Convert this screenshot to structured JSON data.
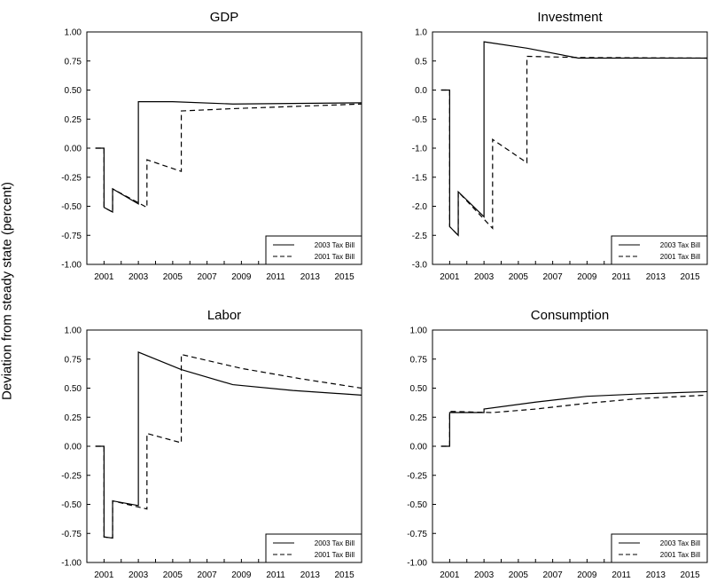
{
  "ylabel": "Deviation from steady state (percent)",
  "chart_data": [
    {
      "type": "line",
      "title": "GDP",
      "xlim": [
        2000,
        2016
      ],
      "ylim": [
        -1.0,
        1.0
      ],
      "yticks": [
        "1.00",
        "0.75",
        "0.50",
        "0.25",
        "0.00",
        "-0.25",
        "-0.50",
        "-0.75",
        "-1.00"
      ],
      "yvals": [
        1.0,
        0.75,
        0.5,
        0.25,
        0.0,
        -0.25,
        -0.5,
        -0.75,
        -1.0
      ],
      "xticks": [
        "2001",
        "2003",
        "2005",
        "2007",
        "2009",
        "2011",
        "2013",
        "2015"
      ],
      "legend": "bottom-right",
      "series": [
        {
          "name": "2003 Tax Bill",
          "style": "solid",
          "points": [
            [
              2000.5,
              0
            ],
            [
              2001.0,
              0
            ],
            [
              2001.0,
              -0.51
            ],
            [
              2001.5,
              -0.55
            ],
            [
              2001.5,
              -0.35
            ],
            [
              2003.0,
              -0.48
            ],
            [
              2003.0,
              0.4
            ],
            [
              2005.0,
              0.4
            ],
            [
              2008.5,
              0.38
            ],
            [
              2016.0,
              0.39
            ]
          ]
        },
        {
          "name": "2001 Tax Bill",
          "style": "dashed",
          "points": [
            [
              2000.5,
              0
            ],
            [
              2001.0,
              0
            ],
            [
              2001.0,
              -0.51
            ],
            [
              2001.5,
              -0.55
            ],
            [
              2001.5,
              -0.35
            ],
            [
              2003.5,
              -0.51
            ],
            [
              2003.5,
              -0.1
            ],
            [
              2005.5,
              -0.2
            ],
            [
              2005.5,
              0.32
            ],
            [
              2008.5,
              0.34
            ],
            [
              2016.0,
              0.38
            ]
          ]
        }
      ]
    },
    {
      "type": "line",
      "title": "Investment",
      "xlim": [
        2000,
        2016
      ],
      "ylim": [
        -3.0,
        1.0
      ],
      "yticks": [
        "1.0",
        "0.5",
        "0.0",
        "-0.5",
        "-1.0",
        "-1.5",
        "-2.0",
        "-2.5",
        "-3.0"
      ],
      "yvals": [
        1.0,
        0.5,
        0.0,
        -0.5,
        -1.0,
        -1.5,
        -2.0,
        -2.5,
        -3.0
      ],
      "xticks": [
        "2001",
        "2003",
        "2005",
        "2007",
        "2009",
        "2011",
        "2013",
        "2015"
      ],
      "legend": "bottom-right",
      "series": [
        {
          "name": "2003 Tax Bill",
          "style": "solid",
          "points": [
            [
              2000.5,
              0
            ],
            [
              2001.0,
              0
            ],
            [
              2001.0,
              -2.35
            ],
            [
              2001.5,
              -2.5
            ],
            [
              2001.5,
              -1.75
            ],
            [
              2003.0,
              -2.18
            ],
            [
              2003.0,
              0.83
            ],
            [
              2005.5,
              0.72
            ],
            [
              2008.5,
              0.55
            ],
            [
              2016.0,
              0.55
            ]
          ]
        },
        {
          "name": "2001 Tax Bill",
          "style": "dashed",
          "points": [
            [
              2000.5,
              0
            ],
            [
              2001.0,
              0
            ],
            [
              2001.0,
              -2.35
            ],
            [
              2001.5,
              -2.5
            ],
            [
              2001.5,
              -1.75
            ],
            [
              2003.5,
              -2.38
            ],
            [
              2003.5,
              -0.85
            ],
            [
              2005.5,
              -1.25
            ],
            [
              2005.5,
              0.58
            ],
            [
              2008.5,
              0.56
            ],
            [
              2016.0,
              0.55
            ]
          ]
        }
      ]
    },
    {
      "type": "line",
      "title": "Labor",
      "xlim": [
        2000,
        2016
      ],
      "ylim": [
        -1.0,
        1.0
      ],
      "yticks": [
        "1.00",
        "0.75",
        "0.50",
        "0.25",
        "0.00",
        "-0.25",
        "-0.50",
        "-0.75",
        "-1.00"
      ],
      "yvals": [
        1.0,
        0.75,
        0.5,
        0.25,
        0.0,
        -0.25,
        -0.5,
        -0.75,
        -1.0
      ],
      "xticks": [
        "2001",
        "2003",
        "2005",
        "2007",
        "2009",
        "2011",
        "2013",
        "2015"
      ],
      "legend": "bottom-right",
      "series": [
        {
          "name": "2003 Tax Bill",
          "style": "solid",
          "points": [
            [
              2000.5,
              0
            ],
            [
              2001.0,
              0
            ],
            [
              2001.0,
              -0.78
            ],
            [
              2001.5,
              -0.79
            ],
            [
              2001.5,
              -0.47
            ],
            [
              2003.0,
              -0.51
            ],
            [
              2003.0,
              0.81
            ],
            [
              2005.5,
              0.66
            ],
            [
              2008.5,
              0.53
            ],
            [
              2012.0,
              0.48
            ],
            [
              2016.0,
              0.44
            ]
          ]
        },
        {
          "name": "2001 Tax Bill",
          "style": "dashed",
          "points": [
            [
              2000.5,
              0
            ],
            [
              2001.0,
              0
            ],
            [
              2001.0,
              -0.78
            ],
            [
              2001.5,
              -0.79
            ],
            [
              2001.5,
              -0.47
            ],
            [
              2003.5,
              -0.54
            ],
            [
              2003.5,
              0.11
            ],
            [
              2005.5,
              0.03
            ],
            [
              2005.5,
              0.79
            ],
            [
              2009.0,
              0.67
            ],
            [
              2012.5,
              0.58
            ],
            [
              2016.0,
              0.5
            ]
          ]
        }
      ]
    },
    {
      "type": "line",
      "title": "Consumption",
      "xlim": [
        2000,
        2016
      ],
      "ylim": [
        -1.0,
        1.0
      ],
      "yticks": [
        "1.00",
        "0.75",
        "0.50",
        "0.25",
        "0.00",
        "-0.25",
        "-0.50",
        "-0.75",
        "-1.00"
      ],
      "yvals": [
        1.0,
        0.75,
        0.5,
        0.25,
        0.0,
        -0.25,
        -0.5,
        -0.75,
        -1.0
      ],
      "xticks": [
        "2001",
        "2003",
        "2005",
        "2007",
        "2009",
        "2011",
        "2013",
        "2015"
      ],
      "legend": "bottom-right",
      "series": [
        {
          "name": "2003 Tax Bill",
          "style": "solid",
          "points": [
            [
              2000.5,
              0
            ],
            [
              2001.0,
              0
            ],
            [
              2001.0,
              0.29
            ],
            [
              2003.0,
              0.29
            ],
            [
              2003.0,
              0.32
            ],
            [
              2006.0,
              0.38
            ],
            [
              2009.0,
              0.43
            ],
            [
              2012.0,
              0.45
            ],
            [
              2016.0,
              0.47
            ]
          ]
        },
        {
          "name": "2001 Tax Bill",
          "style": "dashed",
          "points": [
            [
              2000.5,
              0
            ],
            [
              2001.0,
              0
            ],
            [
              2001.0,
              0.3
            ],
            [
              2003.5,
              0.29
            ],
            [
              2006.0,
              0.32
            ],
            [
              2009.0,
              0.37
            ],
            [
              2012.0,
              0.41
            ],
            [
              2016.0,
              0.44
            ]
          ]
        }
      ]
    }
  ]
}
